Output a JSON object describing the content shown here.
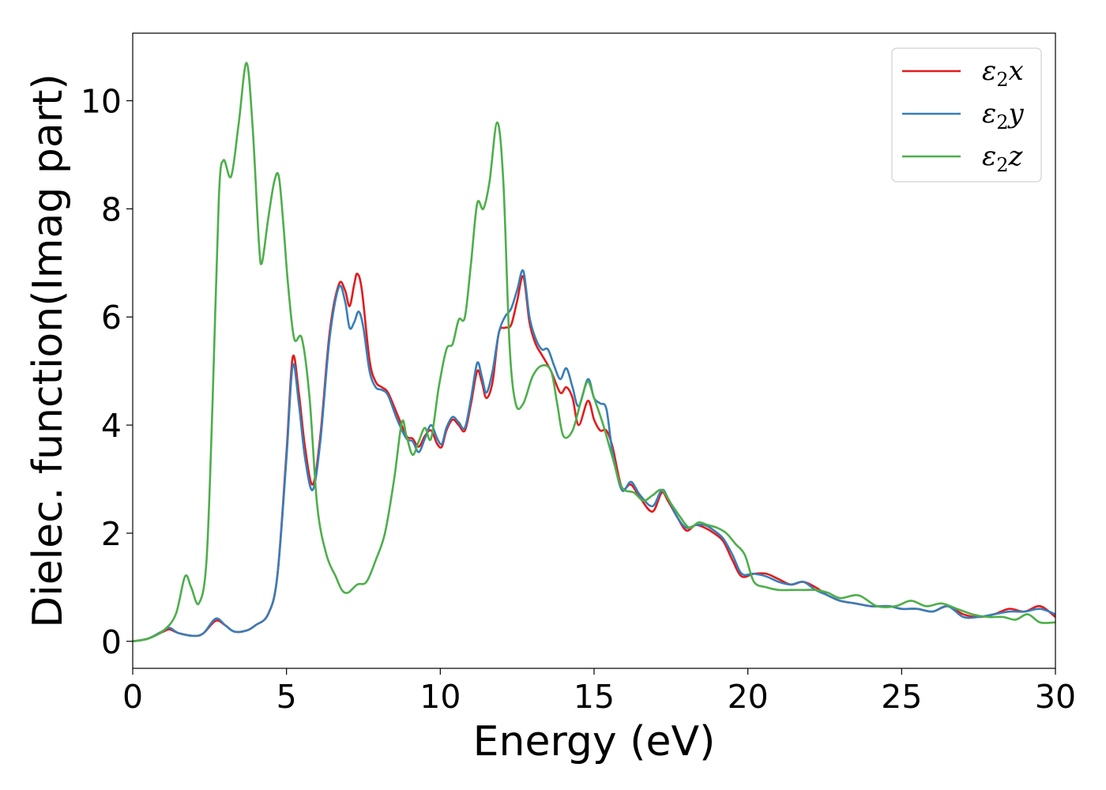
{
  "chart_data": {
    "type": "line",
    "title": "",
    "xlabel": "Energy (eV)",
    "ylabel": "Dielec. function(Imag part)",
    "xlim": [
      0,
      30
    ],
    "ylim": [
      -0.5,
      11.25
    ],
    "xticks": [
      0,
      5,
      10,
      15,
      20,
      25,
      30
    ],
    "yticks": [
      0,
      2,
      4,
      6,
      8,
      10
    ],
    "grid": false,
    "legend_position": "top-right",
    "series": [
      {
        "name": "ε₂x",
        "legend_base": "ε",
        "legend_sub": "2",
        "legend_tail": "x",
        "color": "#e41a1c",
        "points": [
          [
            0,
            0
          ],
          [
            0.5,
            0.05
          ],
          [
            1.0,
            0.18
          ],
          [
            1.2,
            0.22
          ],
          [
            1.5,
            0.15
          ],
          [
            2.0,
            0.1
          ],
          [
            2.3,
            0.15
          ],
          [
            2.7,
            0.38
          ],
          [
            3.0,
            0.3
          ],
          [
            3.3,
            0.18
          ],
          [
            3.7,
            0.2
          ],
          [
            4.0,
            0.3
          ],
          [
            4.4,
            0.5
          ],
          [
            4.7,
            1.2
          ],
          [
            5.0,
            3.5
          ],
          [
            5.2,
            5.25
          ],
          [
            5.4,
            4.6
          ],
          [
            5.6,
            3.6
          ],
          [
            5.85,
            2.9
          ],
          [
            6.1,
            3.8
          ],
          [
            6.4,
            5.7
          ],
          [
            6.7,
            6.6
          ],
          [
            6.9,
            6.5
          ],
          [
            7.05,
            6.2
          ],
          [
            7.2,
            6.6
          ],
          [
            7.3,
            6.8
          ],
          [
            7.45,
            6.5
          ],
          [
            7.7,
            5.2
          ],
          [
            7.9,
            4.8
          ],
          [
            8.1,
            4.7
          ],
          [
            8.3,
            4.6
          ],
          [
            8.6,
            4.2
          ],
          [
            8.9,
            3.8
          ],
          [
            9.1,
            3.75
          ],
          [
            9.3,
            3.6
          ],
          [
            9.5,
            3.8
          ],
          [
            9.7,
            3.9
          ],
          [
            9.9,
            3.65
          ],
          [
            10.05,
            3.6
          ],
          [
            10.2,
            3.9
          ],
          [
            10.4,
            4.1
          ],
          [
            10.6,
            4.0
          ],
          [
            10.8,
            3.9
          ],
          [
            11.0,
            4.4
          ],
          [
            11.2,
            5.0
          ],
          [
            11.35,
            4.8
          ],
          [
            11.5,
            4.5
          ],
          [
            11.7,
            4.8
          ],
          [
            11.9,
            5.7
          ],
          [
            12.1,
            5.8
          ],
          [
            12.3,
            5.85
          ],
          [
            12.5,
            6.3
          ],
          [
            12.7,
            6.75
          ],
          [
            12.9,
            5.9
          ],
          [
            13.1,
            5.5
          ],
          [
            13.3,
            5.3
          ],
          [
            13.6,
            5.0
          ],
          [
            13.9,
            4.6
          ],
          [
            14.1,
            4.7
          ],
          [
            14.3,
            4.5
          ],
          [
            14.5,
            4.0
          ],
          [
            14.8,
            4.45
          ],
          [
            15.0,
            4.1
          ],
          [
            15.2,
            3.9
          ],
          [
            15.4,
            3.9
          ],
          [
            15.6,
            3.6
          ],
          [
            15.9,
            2.85
          ],
          [
            16.2,
            2.9
          ],
          [
            16.5,
            2.65
          ],
          [
            16.9,
            2.4
          ],
          [
            17.2,
            2.75
          ],
          [
            17.4,
            2.6
          ],
          [
            17.7,
            2.3
          ],
          [
            18.0,
            2.05
          ],
          [
            18.3,
            2.15
          ],
          [
            18.6,
            2.1
          ],
          [
            18.9,
            2.0
          ],
          [
            19.2,
            1.85
          ],
          [
            19.5,
            1.5
          ],
          [
            19.8,
            1.2
          ],
          [
            20.2,
            1.25
          ],
          [
            20.6,
            1.25
          ],
          [
            21.0,
            1.15
          ],
          [
            21.4,
            1.05
          ],
          [
            21.8,
            1.1
          ],
          [
            22.2,
            1.0
          ],
          [
            22.6,
            0.85
          ],
          [
            23.0,
            0.75
          ],
          [
            23.5,
            0.7
          ],
          [
            24.0,
            0.65
          ],
          [
            24.6,
            0.65
          ],
          [
            25.0,
            0.6
          ],
          [
            25.5,
            0.6
          ],
          [
            26.0,
            0.55
          ],
          [
            26.5,
            0.65
          ],
          [
            27.0,
            0.5
          ],
          [
            27.5,
            0.45
          ],
          [
            28.0,
            0.5
          ],
          [
            28.5,
            0.6
          ],
          [
            29.0,
            0.55
          ],
          [
            29.5,
            0.65
          ],
          [
            30.0,
            0.45
          ]
        ]
      },
      {
        "name": "ε₂y",
        "legend_base": "ε",
        "legend_sub": "2",
        "legend_tail": "y",
        "color": "#377eb8",
        "points": [
          [
            0,
            0
          ],
          [
            0.5,
            0.05
          ],
          [
            1.0,
            0.2
          ],
          [
            1.2,
            0.25
          ],
          [
            1.5,
            0.15
          ],
          [
            2.0,
            0.1
          ],
          [
            2.3,
            0.15
          ],
          [
            2.7,
            0.42
          ],
          [
            3.0,
            0.3
          ],
          [
            3.3,
            0.18
          ],
          [
            3.7,
            0.2
          ],
          [
            4.0,
            0.3
          ],
          [
            4.4,
            0.5
          ],
          [
            4.7,
            1.2
          ],
          [
            5.0,
            3.4
          ],
          [
            5.2,
            5.1
          ],
          [
            5.4,
            4.4
          ],
          [
            5.6,
            3.4
          ],
          [
            5.85,
            2.8
          ],
          [
            6.1,
            3.7
          ],
          [
            6.4,
            5.6
          ],
          [
            6.7,
            6.55
          ],
          [
            6.9,
            6.3
          ],
          [
            7.05,
            5.8
          ],
          [
            7.2,
            5.9
          ],
          [
            7.35,
            6.1
          ],
          [
            7.5,
            5.8
          ],
          [
            7.7,
            5.0
          ],
          [
            7.9,
            4.7
          ],
          [
            8.1,
            4.65
          ],
          [
            8.3,
            4.55
          ],
          [
            8.6,
            4.1
          ],
          [
            8.9,
            3.75
          ],
          [
            9.1,
            3.7
          ],
          [
            9.3,
            3.5
          ],
          [
            9.5,
            3.75
          ],
          [
            9.7,
            4.0
          ],
          [
            9.9,
            3.75
          ],
          [
            10.05,
            3.65
          ],
          [
            10.2,
            3.95
          ],
          [
            10.4,
            4.15
          ],
          [
            10.6,
            4.05
          ],
          [
            10.8,
            3.95
          ],
          [
            11.0,
            4.5
          ],
          [
            11.2,
            5.15
          ],
          [
            11.35,
            4.9
          ],
          [
            11.5,
            4.6
          ],
          [
            11.7,
            5.0
          ],
          [
            11.9,
            5.7
          ],
          [
            12.1,
            6.0
          ],
          [
            12.3,
            6.15
          ],
          [
            12.5,
            6.5
          ],
          [
            12.7,
            6.85
          ],
          [
            12.9,
            6.0
          ],
          [
            13.1,
            5.6
          ],
          [
            13.3,
            5.4
          ],
          [
            13.5,
            5.4
          ],
          [
            13.7,
            5.1
          ],
          [
            13.9,
            4.85
          ],
          [
            14.1,
            5.05
          ],
          [
            14.3,
            4.7
          ],
          [
            14.5,
            4.35
          ],
          [
            14.8,
            4.85
          ],
          [
            15.0,
            4.5
          ],
          [
            15.2,
            4.4
          ],
          [
            15.4,
            4.3
          ],
          [
            15.6,
            3.5
          ],
          [
            15.9,
            2.8
          ],
          [
            16.2,
            2.95
          ],
          [
            16.5,
            2.7
          ],
          [
            16.9,
            2.5
          ],
          [
            17.2,
            2.8
          ],
          [
            17.4,
            2.65
          ],
          [
            17.7,
            2.3
          ],
          [
            18.0,
            2.1
          ],
          [
            18.3,
            2.15
          ],
          [
            18.6,
            2.15
          ],
          [
            18.9,
            2.05
          ],
          [
            19.2,
            1.9
          ],
          [
            19.5,
            1.6
          ],
          [
            19.8,
            1.25
          ],
          [
            20.2,
            1.25
          ],
          [
            20.6,
            1.2
          ],
          [
            21.0,
            1.1
          ],
          [
            21.4,
            1.05
          ],
          [
            21.8,
            1.1
          ],
          [
            22.2,
            0.95
          ],
          [
            22.6,
            0.85
          ],
          [
            23.0,
            0.75
          ],
          [
            23.5,
            0.7
          ],
          [
            24.0,
            0.65
          ],
          [
            24.6,
            0.65
          ],
          [
            25.0,
            0.6
          ],
          [
            25.5,
            0.6
          ],
          [
            26.0,
            0.55
          ],
          [
            26.5,
            0.65
          ],
          [
            27.0,
            0.45
          ],
          [
            27.5,
            0.45
          ],
          [
            28.0,
            0.5
          ],
          [
            28.5,
            0.55
          ],
          [
            29.0,
            0.55
          ],
          [
            29.5,
            0.6
          ],
          [
            30.0,
            0.5
          ]
        ]
      },
      {
        "name": "ε₂z",
        "legend_base": "ε",
        "legend_sub": "2",
        "legend_tail": "z",
        "color": "#4daf4a",
        "points": [
          [
            0,
            0
          ],
          [
            0.5,
            0.05
          ],
          [
            1.0,
            0.2
          ],
          [
            1.4,
            0.5
          ],
          [
            1.7,
            1.2
          ],
          [
            1.9,
            1.0
          ],
          [
            2.15,
            0.7
          ],
          [
            2.4,
            1.5
          ],
          [
            2.6,
            4.5
          ],
          [
            2.8,
            8.2
          ],
          [
            2.95,
            8.9
          ],
          [
            3.2,
            8.6
          ],
          [
            3.45,
            9.6
          ],
          [
            3.7,
            10.7
          ],
          [
            3.9,
            9.5
          ],
          [
            4.1,
            7.4
          ],
          [
            4.2,
            7.0
          ],
          [
            4.4,
            7.8
          ],
          [
            4.6,
            8.5
          ],
          [
            4.75,
            8.6
          ],
          [
            4.9,
            7.7
          ],
          [
            5.05,
            6.6
          ],
          [
            5.25,
            5.6
          ],
          [
            5.5,
            5.6
          ],
          [
            5.75,
            4.5
          ],
          [
            6.0,
            2.5
          ],
          [
            6.3,
            1.6
          ],
          [
            6.6,
            1.2
          ],
          [
            6.8,
            0.95
          ],
          [
            7.0,
            0.9
          ],
          [
            7.3,
            1.05
          ],
          [
            7.6,
            1.1
          ],
          [
            7.9,
            1.5
          ],
          [
            8.2,
            2.0
          ],
          [
            8.5,
            3.0
          ],
          [
            8.75,
            4.05
          ],
          [
            8.9,
            3.8
          ],
          [
            9.1,
            3.45
          ],
          [
            9.3,
            3.7
          ],
          [
            9.5,
            3.95
          ],
          [
            9.7,
            3.75
          ],
          [
            9.95,
            4.7
          ],
          [
            10.2,
            5.4
          ],
          [
            10.4,
            5.5
          ],
          [
            10.6,
            5.95
          ],
          [
            10.8,
            6.0
          ],
          [
            11.0,
            7.0
          ],
          [
            11.2,
            8.1
          ],
          [
            11.4,
            8.0
          ],
          [
            11.6,
            8.5
          ],
          [
            11.85,
            9.6
          ],
          [
            12.05,
            8.5
          ],
          [
            12.25,
            5.5
          ],
          [
            12.45,
            4.4
          ],
          [
            12.7,
            4.4
          ],
          [
            13.0,
            4.9
          ],
          [
            13.3,
            5.1
          ],
          [
            13.6,
            5.0
          ],
          [
            13.8,
            4.4
          ],
          [
            14.0,
            3.8
          ],
          [
            14.3,
            3.9
          ],
          [
            14.6,
            4.5
          ],
          [
            14.8,
            4.8
          ],
          [
            15.0,
            4.5
          ],
          [
            15.3,
            4.0
          ],
          [
            15.6,
            3.4
          ],
          [
            15.9,
            2.85
          ],
          [
            16.3,
            2.75
          ],
          [
            16.6,
            2.6
          ],
          [
            16.9,
            2.7
          ],
          [
            17.2,
            2.8
          ],
          [
            17.5,
            2.55
          ],
          [
            17.8,
            2.3
          ],
          [
            18.1,
            2.1
          ],
          [
            18.4,
            2.2
          ],
          [
            18.7,
            2.15
          ],
          [
            19.0,
            2.1
          ],
          [
            19.3,
            2.0
          ],
          [
            19.6,
            1.8
          ],
          [
            19.9,
            1.6
          ],
          [
            20.2,
            1.1
          ],
          [
            20.6,
            1.0
          ],
          [
            21.0,
            0.95
          ],
          [
            21.4,
            0.95
          ],
          [
            21.8,
            0.95
          ],
          [
            22.2,
            0.95
          ],
          [
            22.6,
            0.9
          ],
          [
            23.0,
            0.8
          ],
          [
            23.6,
            0.85
          ],
          [
            24.2,
            0.65
          ],
          [
            24.8,
            0.65
          ],
          [
            25.3,
            0.75
          ],
          [
            25.8,
            0.65
          ],
          [
            26.3,
            0.7
          ],
          [
            26.8,
            0.6
          ],
          [
            27.3,
            0.5
          ],
          [
            27.8,
            0.45
          ],
          [
            28.3,
            0.45
          ],
          [
            28.7,
            0.4
          ],
          [
            29.1,
            0.5
          ],
          [
            29.5,
            0.35
          ],
          [
            30.0,
            0.35
          ]
        ]
      }
    ]
  }
}
